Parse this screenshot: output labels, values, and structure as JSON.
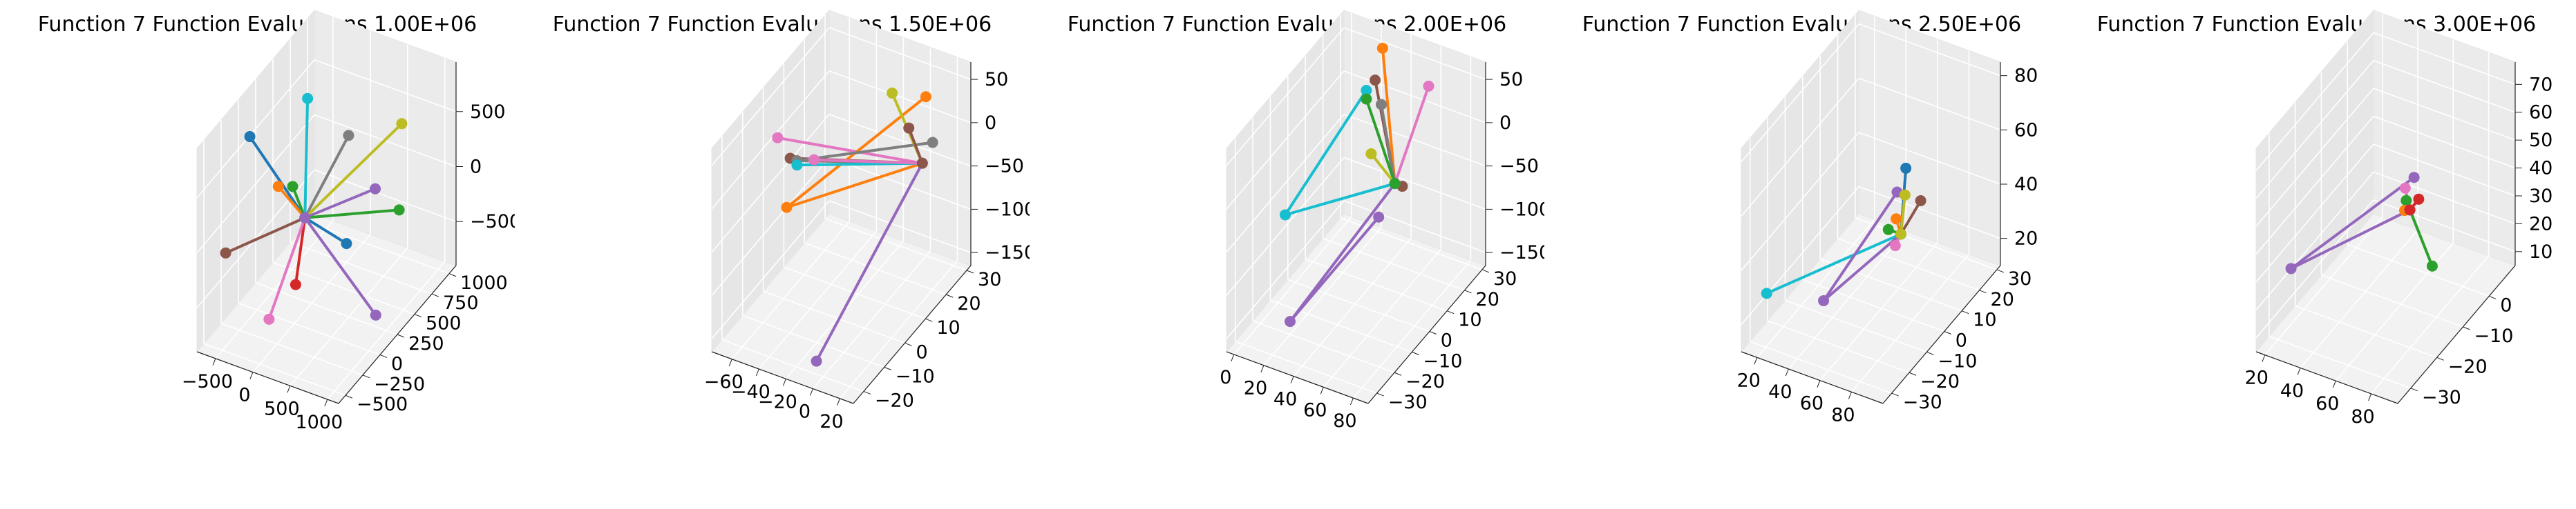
{
  "chart_data": [
    {
      "type": "scatter3d-lines",
      "title": "Function 7 Function Evaluations 1.00E+06",
      "x_ticks": [
        "−500",
        "0",
        "500",
        "1000"
      ],
      "x_range": [
        -750,
        1150
      ],
      "y_ticks": [
        "−500",
        "−250",
        "0",
        "250",
        "500",
        "750",
        "1000"
      ],
      "y_range": [
        -600,
        1100
      ],
      "z_ticks": [
        "−500",
        "0",
        "500"
      ],
      "z_range": [
        -900,
        950
      ],
      "hub": [
        50,
        100,
        0
      ],
      "series": [
        {
          "color": "#1f77b4",
          "points": [
            [
              -550,
              -50,
              700
            ]
          ]
        },
        {
          "color": "#ff7f0e",
          "points": [
            [
              -400,
              200,
              100
            ]
          ]
        },
        {
          "color": "#2ca02c",
          "points": [
            [
              -300,
              300,
              50
            ]
          ]
        },
        {
          "color": "#d62728",
          "points": [
            [
              250,
              -250,
              -300
            ]
          ]
        },
        {
          "color": "#9467bd",
          "points": [
            [
              900,
              200,
              400
            ]
          ]
        },
        {
          "color": "#8c564b",
          "points": [
            [
              -550,
              -400,
              -100
            ]
          ]
        },
        {
          "color": "#e377c2",
          "points": [
            [
              -200,
              -150,
              -800
            ]
          ]
        },
        {
          "color": "#7f7f7f",
          "points": [
            [
              450,
              300,
              700
            ]
          ]
        },
        {
          "color": "#bcbd22",
          "points": [
            [
              700,
              800,
              500
            ]
          ]
        },
        {
          "color": "#17becf",
          "points": [
            [
              -100,
              300,
              900
            ]
          ]
        },
        {
          "color": "#1f77b4",
          "points": [
            [
              700,
              0,
              0
            ]
          ]
        },
        {
          "color": "#2ca02c",
          "points": [
            [
              850,
              600,
              -100
            ]
          ]
        },
        {
          "color": "#9467bd",
          "points": [
            [
              1000,
              100,
              -650
            ]
          ]
        }
      ]
    },
    {
      "type": "scatter3d-lines",
      "title": "Function 7 Function Evaluations 1.50E+06",
      "x_ticks": [
        "−60",
        "−40",
        "−20",
        "0",
        "20"
      ],
      "x_range": [
        -75,
        30
      ],
      "y_ticks": [
        "−20",
        "−10",
        "0",
        "10",
        "20",
        "30"
      ],
      "y_range": [
        -25,
        32
      ],
      "z_ticks": [
        "−150",
        "−100",
        "−50",
        "0",
        "50"
      ],
      "z_range": [
        -165,
        70
      ],
      "hub": [
        20,
        15,
        -5
      ],
      "series": [
        {
          "color": "#e377c2",
          "points": [
            [
              -72,
              5,
              0
            ]
          ]
        },
        {
          "color": "#8c564b",
          "points": [
            [
              -55,
              0,
              0
            ]
          ]
        },
        {
          "color": "#ff7f0e",
          "points": [
            [
              -50,
              -5,
              -40
            ],
            [
              15,
              20,
              55
            ]
          ]
        },
        {
          "color": "#7f7f7f",
          "points": [
            [
              -50,
              0,
              0
            ],
            [
              20,
              20,
              5
            ]
          ]
        },
        {
          "color": "#17becf",
          "points": [
            [
              -50,
              0,
              -5
            ]
          ]
        },
        {
          "color": "#bcbd22",
          "points": [
            [
              -10,
              20,
              45
            ]
          ]
        },
        {
          "color": "#8c564b",
          "points": [
            [
              10,
              15,
              30
            ]
          ]
        },
        {
          "color": "#9467bd",
          "points": [
            [
              -5,
              -20,
              -150
            ]
          ]
        },
        {
          "color": "#e377c2",
          "points": [
            [
              -45,
              5,
              -10
            ]
          ]
        }
      ]
    },
    {
      "type": "scatter3d-lines",
      "title": "Function 7 Function Evaluations 2.00E+06",
      "x_ticks": [
        "0",
        "20",
        "40",
        "60",
        "80"
      ],
      "x_range": [
        -5,
        90
      ],
      "y_ticks": [
        "−30",
        "−20",
        "−10",
        "0",
        "10",
        "20",
        "30"
      ],
      "y_range": [
        -35,
        32
      ],
      "z_ticks": [
        "−150",
        "−100",
        "−50",
        "0",
        "50"
      ],
      "z_range": [
        -165,
        70
      ],
      "hub": [
        55,
        10,
        -40
      ],
      "series": [
        {
          "color": "#17becf",
          "points": [
            [
              5,
              -10,
              -60
            ],
            [
              30,
              15,
              40
            ]
          ]
        },
        {
          "color": "#ff7f0e",
          "points": [
            [
              35,
              20,
              80
            ]
          ]
        },
        {
          "color": "#8c564b",
          "points": [
            [
              30,
              20,
              40
            ]
          ]
        },
        {
          "color": "#7f7f7f",
          "points": [
            [
              40,
              15,
              30
            ]
          ]
        },
        {
          "color": "#e377c2",
          "points": [
            [
              60,
              25,
              40
            ]
          ]
        },
        {
          "color": "#9467bd",
          "points": [
            [
              20,
              -20,
              -150
            ],
            [
              50,
              5,
              -70
            ]
          ]
        },
        {
          "color": "#2ca02c",
          "points": [
            [
              30,
              15,
              30
            ]
          ]
        },
        {
          "color": "#bcbd22",
          "points": [
            [
              45,
              5,
              0
            ]
          ]
        },
        {
          "color": "#8c564b",
          "points": [
            [
              60,
              10,
              -40
            ]
          ]
        }
      ]
    },
    {
      "type": "scatter3d-lines",
      "title": "Function 7 Function Evaluations 2.50E+06",
      "x_ticks": [
        "20",
        "40",
        "60",
        "80"
      ],
      "x_range": [
        10,
        100
      ],
      "y_ticks": [
        "−30",
        "−20",
        "−10",
        "0",
        "10",
        "20",
        "30"
      ],
      "y_range": [
        -35,
        32
      ],
      "z_ticks": [
        "20",
        "40",
        "60",
        "80"
      ],
      "z_range": [
        10,
        85
      ],
      "hub": [
        78,
        -5,
        45
      ],
      "series": [
        {
          "color": "#17becf",
          "points": [
            [
              15,
              -25,
              25
            ]
          ]
        },
        {
          "color": "#9467bd",
          "points": [
            [
              40,
              -15,
              20
            ],
            [
              70,
              0,
              55
            ]
          ]
        },
        {
          "color": "#1f77b4",
          "points": [
            [
              70,
              5,
              60
            ]
          ]
        },
        {
          "color": "#2ca02c",
          "points": [
            [
              70,
              -5,
              45
            ]
          ]
        },
        {
          "color": "#e377c2",
          "points": [
            [
              80,
              -10,
              45
            ]
          ]
        },
        {
          "color": "#8c564b",
          "points": [
            [
              85,
              0,
              55
            ]
          ]
        },
        {
          "color": "#bcbd22",
          "points": [
            [
              75,
              0,
              55
            ]
          ]
        },
        {
          "color": "#ff7f0e",
          "points": [
            [
              75,
              -5,
              50
            ]
          ]
        }
      ]
    },
    {
      "type": "scatter3d-lines",
      "title": "Function 7 Function Evaluations 3.00E+06",
      "x_ticks": [
        "20",
        "40",
        "60",
        "80"
      ],
      "x_range": [
        15,
        95
      ],
      "y_ticks": [
        "−30",
        "−20",
        "−10",
        "0"
      ],
      "y_range": [
        -35,
        10
      ],
      "z_ticks": [
        "10",
        "20",
        "30",
        "40",
        "50",
        "60",
        "70"
      ],
      "z_range": [
        5,
        78
      ],
      "hub": [
        65,
        -10,
        40
      ],
      "series": [
        {
          "color": "#9467bd",
          "points": [
            [
              20,
              -25,
              25
            ],
            [
              60,
              -5,
              45
            ]
          ]
        },
        {
          "color": "#2ca02c",
          "points": [
            [
              85,
              -15,
              30
            ],
            [
              60,
              -8,
              40
            ]
          ]
        },
        {
          "color": "#e377c2",
          "points": [
            [
              55,
              -5,
              40
            ]
          ]
        },
        {
          "color": "#d62728",
          "points": [
            [
              70,
              -10,
              45
            ]
          ]
        },
        {
          "color": "#ff7f0e",
          "points": [
            [
              65,
              -12,
              42
            ]
          ]
        },
        {
          "color": "#17becf",
          "points": [
            [
              65,
              -10,
              40
            ]
          ]
        }
      ]
    }
  ]
}
